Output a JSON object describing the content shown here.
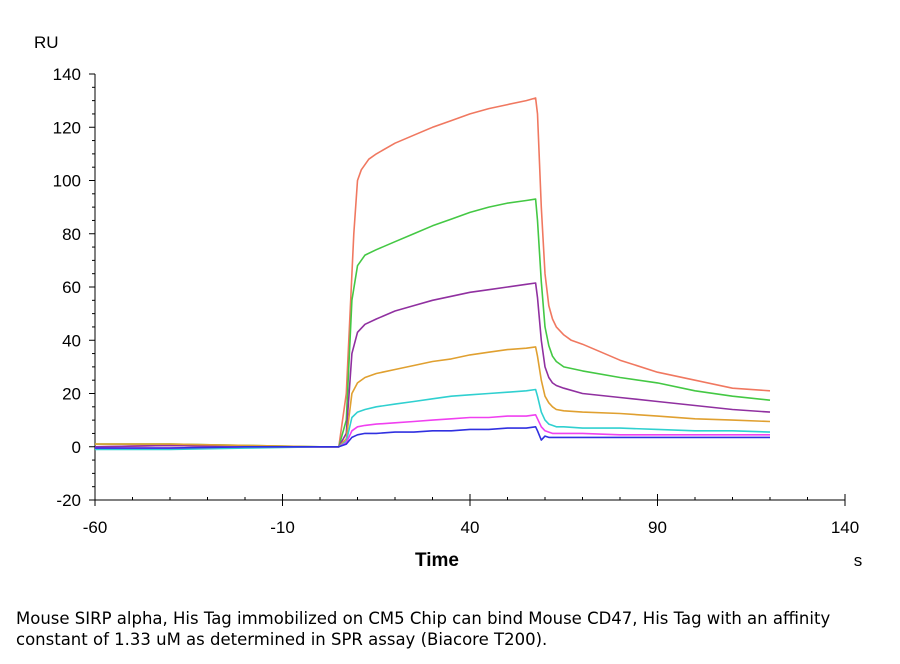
{
  "caption": "Mouse SIRP alpha, His Tag immobilized on CM5 Chip can bind Mouse CD47, His Tag with an affinity constant of 1.33 uM as determined in SPR assay (Biacore T200).",
  "chart_data": {
    "type": "line",
    "title": "",
    "xlabel": "Time",
    "xunit": "s",
    "ylabel": "RU",
    "xlim": [
      -60,
      140
    ],
    "ylim": [
      -20,
      140
    ],
    "xticks": [
      -60,
      -10,
      40,
      90,
      140
    ],
    "yticks": [
      -20,
      0,
      20,
      40,
      60,
      80,
      100,
      120,
      140
    ],
    "grid": false,
    "legend": "none",
    "series": [
      {
        "color": "#f07860",
        "x": [
          -60,
          -40,
          -20,
          0,
          3,
          5,
          7,
          9,
          10,
          11,
          13,
          15,
          20,
          25,
          30,
          35,
          40,
          45,
          50,
          55,
          57.5,
          58,
          59,
          60,
          61,
          62,
          63,
          65,
          67,
          70,
          75,
          80,
          90,
          100,
          110,
          120
        ],
        "y": [
          0,
          0.5,
          0,
          0,
          0,
          0,
          20,
          80,
          100,
          104,
          108,
          110,
          114,
          117,
          120,
          122.5,
          125,
          127,
          128.5,
          130,
          131,
          125,
          90,
          65,
          53,
          48,
          45,
          42,
          40,
          38.5,
          35.5,
          32.5,
          28,
          25,
          22,
          21
        ]
      },
      {
        "color": "#44c844",
        "x": [
          -60,
          -40,
          -20,
          0,
          5,
          7,
          8.5,
          10,
          12,
          15,
          20,
          25,
          30,
          35,
          40,
          45,
          50,
          55,
          57.5,
          58,
          59,
          60,
          61,
          62,
          63,
          65,
          70,
          80,
          90,
          100,
          110,
          120
        ],
        "y": [
          1,
          1,
          0.5,
          0,
          0,
          10,
          55,
          68,
          72,
          74,
          77,
          80,
          83,
          85.5,
          88,
          90,
          91.5,
          92.5,
          93,
          85,
          62,
          45,
          38,
          34,
          32,
          30,
          28.5,
          26,
          24,
          21,
          19,
          17.5
        ]
      },
      {
        "color": "#9030a0",
        "x": [
          -60,
          -40,
          -20,
          0,
          5,
          7,
          8.5,
          10,
          12,
          15,
          20,
          25,
          30,
          35,
          40,
          45,
          50,
          55,
          57.5,
          58,
          59,
          60,
          61,
          62,
          63,
          65,
          70,
          80,
          90,
          100,
          110,
          120
        ],
        "y": [
          0,
          0.5,
          0,
          0,
          0,
          5,
          35,
          43,
          46,
          48,
          51,
          53,
          55,
          56.5,
          58,
          59,
          60,
          61,
          61.5,
          56,
          40,
          30,
          26,
          24,
          23,
          22,
          20,
          18.5,
          17,
          15.5,
          14,
          13
        ]
      },
      {
        "color": "#e0a030",
        "x": [
          -60,
          -40,
          -20,
          0,
          5,
          7,
          8.5,
          10,
          12,
          15,
          20,
          25,
          30,
          35,
          40,
          45,
          50,
          55,
          57.5,
          58,
          59,
          60,
          61,
          62,
          63,
          65,
          70,
          80,
          90,
          100,
          110,
          120
        ],
        "y": [
          1,
          1,
          0.5,
          0,
          0,
          3,
          20,
          24,
          26,
          27.5,
          29,
          30.5,
          32,
          33,
          34.5,
          35.5,
          36.5,
          37,
          37.5,
          34,
          25,
          19,
          16.5,
          15,
          14,
          13.5,
          13,
          12.5,
          11.5,
          10.5,
          10,
          9.5
        ]
      },
      {
        "color": "#30d0d0",
        "x": [
          -60,
          -40,
          -20,
          0,
          5,
          7,
          8.5,
          10,
          12,
          15,
          20,
          25,
          30,
          35,
          40,
          45,
          50,
          55,
          57.5,
          58,
          59,
          60,
          61,
          62,
          63,
          65,
          70,
          80,
          90,
          100,
          110,
          120
        ],
        "y": [
          -1,
          -1,
          -0.5,
          0,
          0,
          2,
          11,
          13,
          14,
          15,
          16,
          17,
          18,
          19,
          19.5,
          20,
          20.5,
          21,
          21.5,
          19,
          13,
          10,
          8.5,
          8,
          7.5,
          7.5,
          7,
          7,
          6.5,
          6,
          6,
          5.5
        ]
      },
      {
        "color": "#f040f0",
        "x": [
          -60,
          -40,
          -20,
          0,
          5,
          7,
          8.5,
          10,
          12,
          15,
          20,
          25,
          30,
          35,
          40,
          45,
          50,
          55,
          57.5,
          58,
          59,
          60,
          61,
          62,
          63,
          65,
          70,
          80,
          90,
          100,
          110,
          120
        ],
        "y": [
          -0.5,
          -0.5,
          0,
          0,
          0,
          1.5,
          6,
          7.5,
          8,
          8.5,
          9,
          9.5,
          10,
          10.5,
          11,
          11,
          11.5,
          11.5,
          12,
          10.5,
          7.5,
          6,
          5.5,
          5,
          5,
          5,
          5,
          4.5,
          4.5,
          4.5,
          4.5,
          4.5
        ]
      },
      {
        "color": "#3030e0",
        "x": [
          -60,
          -40,
          -20,
          0,
          5,
          7,
          8.5,
          10,
          12,
          15,
          20,
          25,
          30,
          35,
          40,
          45,
          50,
          55,
          57.5,
          58,
          59,
          60,
          61,
          62,
          63,
          65,
          70,
          80,
          90,
          100,
          110,
          120
        ],
        "y": [
          -0.5,
          -0.5,
          0,
          0,
          0,
          1,
          3.5,
          4.5,
          5,
          5,
          5.5,
          5.5,
          6,
          6,
          6.5,
          6.5,
          7,
          7,
          7.5,
          6,
          2.5,
          4,
          3.5,
          3.5,
          3.5,
          3.5,
          3.5,
          3.5,
          3.5,
          3.5,
          3.5,
          3.5
        ]
      }
    ]
  }
}
